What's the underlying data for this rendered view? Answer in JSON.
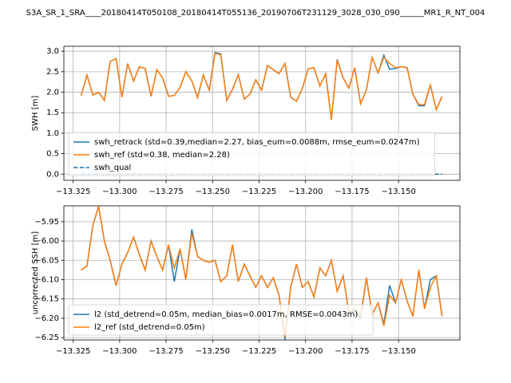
{
  "title": "S3A_SR_1_SRA____20180414T050108_20180414T055136_20190706T231129_3028_030_090______MR1_R_NT_004",
  "chart_data": [
    {
      "type": "line",
      "ylabel": "SWH [m]",
      "x": [
        -13.3207,
        -13.3176,
        -13.3144,
        -13.3113,
        -13.3082,
        -13.3051,
        -13.3019,
        -13.2988,
        -13.2957,
        -13.2925,
        -13.2894,
        -13.2863,
        -13.2831,
        -13.28,
        -13.2769,
        -13.2737,
        -13.2706,
        -13.2675,
        -13.2644,
        -13.2612,
        -13.2581,
        -13.255,
        -13.2518,
        -13.2487,
        -13.2456,
        -13.2424,
        -13.2393,
        -13.2362,
        -13.233,
        -13.2299,
        -13.2268,
        -13.2237,
        -13.2205,
        -13.2174,
        -13.2143,
        -13.2111,
        -13.208,
        -13.2049,
        -13.2017,
        -13.1986,
        -13.1955,
        -13.1923,
        -13.1892,
        -13.1861,
        -13.183,
        -13.1798,
        -13.1767,
        -13.1736,
        -13.1704,
        -13.1673,
        -13.1642,
        -13.161,
        -13.1579,
        -13.1548,
        -13.1516,
        -13.1485,
        -13.1454,
        -13.1423,
        -13.1391,
        -13.136,
        -13.1329,
        -13.1297,
        -13.1266
      ],
      "series": [
        {
          "name": "swh_retrack (std=0.39,median=2.27, bias_eum=0.0088m, rmse_eum=0.0247m)",
          "color": "#1f77b4",
          "linestyle": "solid",
          "values": [
            1.92,
            2.42,
            1.93,
            2.0,
            1.8,
            2.75,
            2.82,
            1.88,
            2.7,
            2.27,
            2.62,
            2.58,
            1.9,
            2.55,
            2.35,
            1.9,
            1.92,
            2.12,
            2.5,
            2.28,
            1.87,
            2.42,
            2.05,
            2.97,
            2.93,
            1.8,
            2.07,
            2.43,
            1.83,
            1.95,
            2.3,
            2.05,
            2.65,
            2.55,
            2.45,
            2.7,
            1.88,
            1.78,
            2.1,
            2.57,
            2.6,
            2.15,
            2.45,
            1.33,
            2.8,
            2.35,
            2.1,
            2.6,
            1.72,
            2.05,
            2.85,
            2.47,
            2.9,
            2.56,
            2.58,
            2.62,
            2.6,
            1.95,
            1.67,
            1.67,
            2.18,
            1.57,
            1.9
          ]
        },
        {
          "name": "swh_ref (std=0.38, median=2.28)",
          "color": "#ff7f0e",
          "linestyle": "solid",
          "values": [
            1.92,
            2.42,
            1.93,
            2.0,
            1.8,
            2.75,
            2.82,
            1.88,
            2.7,
            2.27,
            2.62,
            2.58,
            1.9,
            2.55,
            2.35,
            1.9,
            1.92,
            2.12,
            2.5,
            2.28,
            1.87,
            2.42,
            2.05,
            2.95,
            2.91,
            1.8,
            2.07,
            2.43,
            1.83,
            1.95,
            2.3,
            2.05,
            2.65,
            2.55,
            2.45,
            2.7,
            1.88,
            1.78,
            2.1,
            2.57,
            2.6,
            2.15,
            2.45,
            1.33,
            2.78,
            2.35,
            2.1,
            2.6,
            1.72,
            2.05,
            2.85,
            2.47,
            2.85,
            2.7,
            2.6,
            2.62,
            2.6,
            1.95,
            1.7,
            1.7,
            2.18,
            1.57,
            1.9
          ]
        },
        {
          "name": "swh_qual",
          "color": "#1f77b4",
          "linestyle": "dashed",
          "values": [
            0,
            0,
            0,
            0,
            0,
            0,
            0,
            0,
            0,
            0,
            0,
            0,
            0,
            0,
            0,
            0,
            0,
            0,
            0,
            0,
            0,
            0,
            0,
            0,
            0,
            0,
            0,
            0,
            0,
            0,
            0,
            0,
            0,
            0,
            0,
            0,
            0,
            0,
            0,
            0,
            0,
            0,
            0,
            0,
            0,
            0,
            0,
            0,
            0,
            0,
            0,
            0,
            0,
            0,
            0,
            0,
            0,
            0,
            0,
            0,
            0,
            0,
            0
          ]
        }
      ],
      "xlim": [
        -13.33,
        -13.117
      ],
      "xticks": [
        {
          "value": -13.325,
          "label": "−13.325"
        },
        {
          "value": -13.3,
          "label": "−13.300"
        },
        {
          "value": -13.275,
          "label": "−13.275"
        },
        {
          "value": -13.25,
          "label": "−13.250"
        },
        {
          "value": -13.225,
          "label": "−13.225"
        },
        {
          "value": -13.2,
          "label": "−13.200"
        },
        {
          "value": -13.175,
          "label": "−13.175"
        },
        {
          "value": -13.15,
          "label": "−13.150"
        }
      ],
      "ylim": [
        -0.15,
        3.12
      ],
      "yticks": [
        {
          "value": 0,
          "label": "0.0"
        },
        0.5,
        {
          "value": 1,
          "label": "1.0"
        },
        1.5,
        {
          "value": 2,
          "label": "2.0"
        },
        2.5,
        {
          "value": 3,
          "label": "3.0"
        }
      ],
      "grid": true,
      "legend": "lower left"
    },
    {
      "type": "line",
      "ylabel": "uncorrected SSH [m]",
      "x": [
        -13.3207,
        -13.3176,
        -13.3144,
        -13.3113,
        -13.3082,
        -13.3051,
        -13.3019,
        -13.2988,
        -13.2957,
        -13.2925,
        -13.2894,
        -13.2863,
        -13.2831,
        -13.28,
        -13.2769,
        -13.2737,
        -13.2706,
        -13.2675,
        -13.2644,
        -13.2612,
        -13.2581,
        -13.255,
        -13.2518,
        -13.2487,
        -13.2456,
        -13.2424,
        -13.2393,
        -13.2362,
        -13.233,
        -13.2299,
        -13.2268,
        -13.2237,
        -13.2205,
        -13.2174,
        -13.2143,
        -13.2111,
        -13.208,
        -13.2049,
        -13.2017,
        -13.1986,
        -13.1955,
        -13.1923,
        -13.1892,
        -13.1861,
        -13.183,
        -13.1798,
        -13.1767,
        -13.1736,
        -13.1704,
        -13.1673,
        -13.1642,
        -13.161,
        -13.1579,
        -13.1548,
        -13.1516,
        -13.1485,
        -13.1454,
        -13.1423,
        -13.1391,
        -13.136,
        -13.1329,
        -13.1297,
        -13.1266
      ],
      "series": [
        {
          "name": "l2 (std_detrend=0.05m, median_bias=0.0017m, RMSE=0.0043m)",
          "color": "#1f77b4",
          "linestyle": "solid",
          "values": [
            -6.075,
            -6.065,
            -5.96,
            -5.91,
            -6.0,
            -6.05,
            -6.115,
            -6.06,
            -6.03,
            -5.99,
            -6.035,
            -6.075,
            -6.0,
            -6.04,
            -6.075,
            -6.01,
            -6.105,
            -6.02,
            -6.1,
            -5.97,
            -6.04,
            -6.05,
            -6.055,
            -6.05,
            -6.105,
            -6.09,
            -6.01,
            -6.105,
            -6.06,
            -6.09,
            -6.12,
            -6.09,
            -6.12,
            -6.095,
            -6.14,
            -6.255,
            -6.12,
            -6.06,
            -6.12,
            -6.105,
            -6.145,
            -6.07,
            -6.09,
            -6.05,
            -6.13,
            -6.09,
            -6.185,
            -6.18,
            -6.2,
            -6.095,
            -6.19,
            -6.16,
            -6.215,
            -6.115,
            -6.16,
            -6.1,
            -6.155,
            -6.195,
            -6.075,
            -6.175,
            -6.1,
            -6.09,
            -6.195
          ]
        },
        {
          "name": "l2_ref (std_detrend=0.05m)",
          "color": "#ff7f0e",
          "linestyle": "solid",
          "values": [
            -6.075,
            -6.065,
            -5.96,
            -5.91,
            -6.0,
            -6.05,
            -6.115,
            -6.06,
            -6.03,
            -5.99,
            -6.035,
            -6.075,
            -6.0,
            -6.04,
            -6.075,
            -6.01,
            -6.07,
            -6.02,
            -6.1,
            -5.98,
            -6.04,
            -6.05,
            -6.055,
            -6.05,
            -6.105,
            -6.09,
            -6.01,
            -6.105,
            -6.06,
            -6.09,
            -6.12,
            -6.09,
            -6.12,
            -6.095,
            -6.14,
            -6.25,
            -6.12,
            -6.06,
            -6.12,
            -6.105,
            -6.145,
            -6.07,
            -6.09,
            -6.05,
            -6.13,
            -6.09,
            -6.185,
            -6.175,
            -6.195,
            -6.095,
            -6.19,
            -6.16,
            -6.22,
            -6.14,
            -6.16,
            -6.1,
            -6.155,
            -6.195,
            -6.075,
            -6.175,
            -6.12,
            -6.09,
            -6.195
          ]
        }
      ],
      "xlim": [
        -13.33,
        -13.117
      ],
      "xticks": [
        {
          "value": -13.325,
          "label": "−13.325"
        },
        {
          "value": -13.3,
          "label": "−13.300"
        },
        {
          "value": -13.275,
          "label": "−13.275"
        },
        {
          "value": -13.25,
          "label": "−13.250"
        },
        {
          "value": -13.225,
          "label": "−13.225"
        },
        {
          "value": -13.2,
          "label": "−13.200"
        },
        {
          "value": -13.175,
          "label": "−13.175"
        },
        {
          "value": -13.15,
          "label": "−13.150"
        }
      ],
      "ylim": [
        -6.256,
        -5.909
      ],
      "yticks": [
        {
          "value": -6.25,
          "label": "−6.25"
        },
        {
          "value": -6.2,
          "label": "−6.20"
        },
        {
          "value": -6.15,
          "label": "−6.15"
        },
        {
          "value": -6.1,
          "label": "−6.10"
        },
        {
          "value": -6.05,
          "label": "−6.05"
        },
        {
          "value": -6.0,
          "label": "−6.00"
        },
        {
          "value": -5.95,
          "label": "−5.95"
        }
      ],
      "grid": true,
      "legend": "lower left"
    }
  ]
}
